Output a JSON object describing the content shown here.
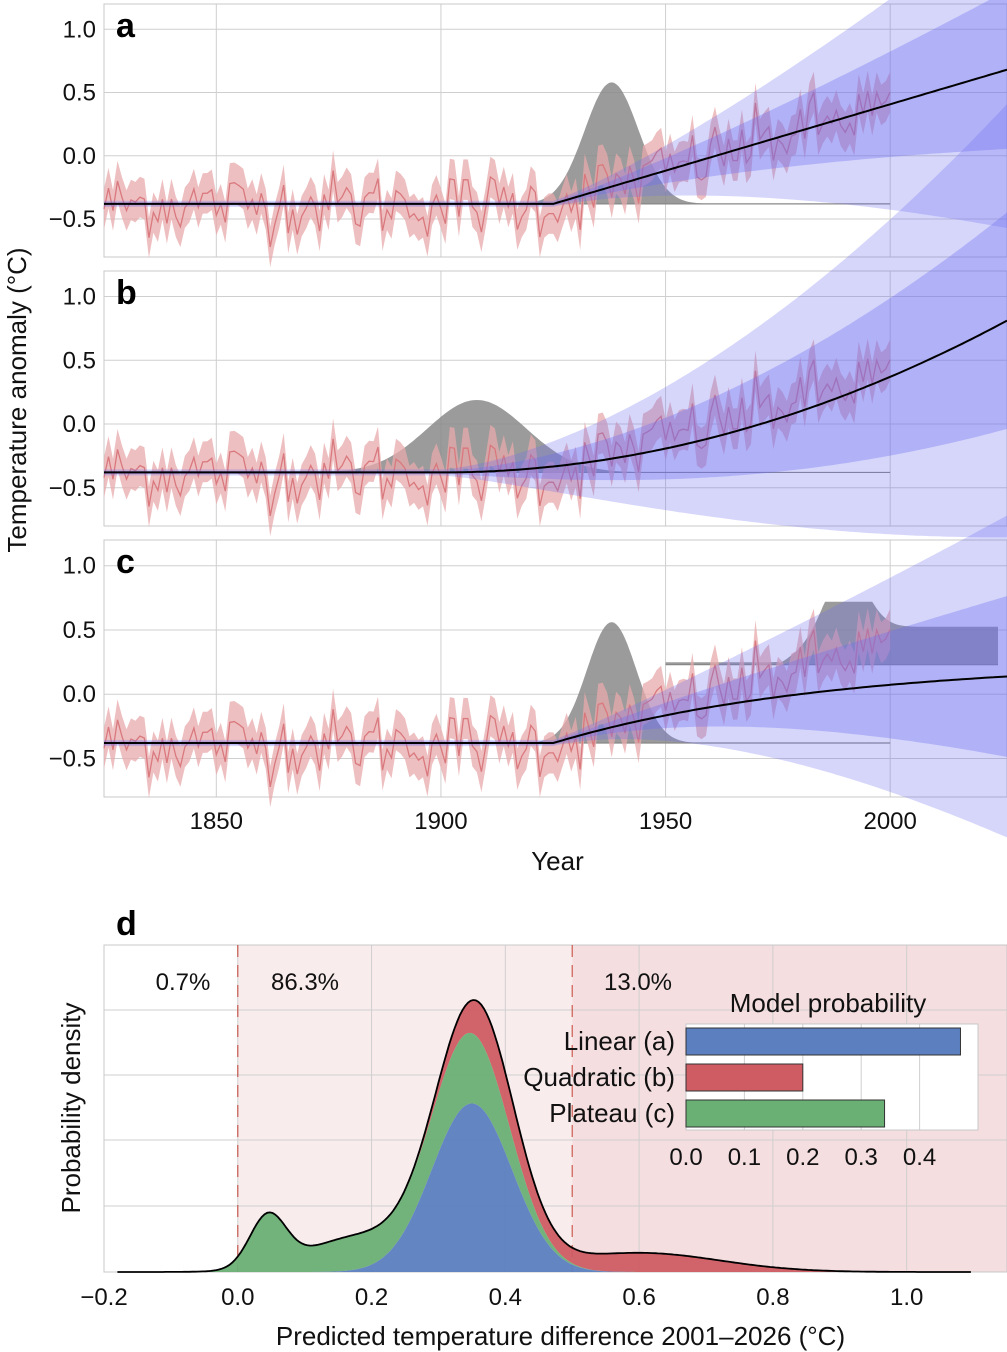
{
  "chart_data": [
    {
      "panel": "a",
      "type": "line",
      "model": "Linear",
      "ylabel": "Temperature anomaly (°C)",
      "xlabel": "Year",
      "xlim": [
        1825,
        2026
      ],
      "ylim": [
        -0.8,
        1.2
      ],
      "xticks": [
        1850,
        1900,
        1950,
        2000
      ],
      "yticks": [
        -0.5,
        0.0,
        0.5,
        1.0
      ],
      "baseline": -0.38,
      "changepoint_mode": 1938,
      "changepoint_sd": 6,
      "changepoint_peak": 0.6,
      "observed_years": [
        1825,
        2000
      ],
      "trend": {
        "type": "linear",
        "start": 1925,
        "slope": 0.0105
      },
      "projection_end": 2026
    },
    {
      "panel": "b",
      "type": "line",
      "model": "Quadratic",
      "xlim": [
        1825,
        2026
      ],
      "ylim": [
        -0.8,
        1.2
      ],
      "xticks": [
        1850,
        1900,
        1950,
        2000
      ],
      "yticks": [
        -0.5,
        0.0,
        0.5,
        1.0
      ],
      "baseline": -0.38,
      "changepoint_mode": 1908,
      "changepoint_sd": 11,
      "changepoint_peak": 0.2,
      "trend": {
        "type": "quadratic",
        "start": 1900,
        "coef": 7.5e-05
      },
      "projection_end": 2026
    },
    {
      "panel": "c",
      "type": "line",
      "model": "Plateau",
      "xlim": [
        1825,
        2026
      ],
      "ylim": [
        -0.8,
        1.2
      ],
      "xticks": [
        1850,
        1900,
        1950,
        2000
      ],
      "yticks": [
        -0.5,
        0.0,
        0.5,
        1.0
      ],
      "xtick_labels": [
        "1850",
        "1900",
        "1950",
        "2000"
      ],
      "baseline": -0.38,
      "changepoint_mode": 1938,
      "changepoint_sd": 5.5,
      "changepoint_peak": 0.58,
      "plateau_level": 0.25,
      "plateau_year_mode": 1990,
      "trend": {
        "type": "plateau",
        "start": 1925,
        "slope": 0.0105,
        "plateau": 0.26
      },
      "projection_end": 2026
    },
    {
      "panel": "d",
      "type": "area",
      "title": "",
      "xlabel": "Predicted temperature difference 2001–2026 (°C)",
      "ylabel": "Probability density",
      "xlim": [
        -0.2,
        1.15
      ],
      "xticks": [
        -0.2,
        0.0,
        0.2,
        0.4,
        0.6,
        0.8,
        1.0
      ],
      "xtick_labels": [
        "−0.2",
        "0.0",
        "0.2",
        "0.4",
        "0.6",
        "0.8",
        "1.0"
      ],
      "thresholds": [
        0.0,
        0.5
      ],
      "region_labels": [
        "0.7%",
        "86.3%",
        "13.0%"
      ],
      "series": [
        {
          "name": "Linear",
          "components": [
            {
              "mean": 0.35,
              "sd": 0.06,
              "weight": 0.44
            }
          ]
        },
        {
          "name": "Quadratic",
          "components": [
            {
              "mean": 0.38,
              "sd": 0.05,
              "weight": 0.08
            },
            {
              "mean": 0.6,
              "sd": 0.12,
              "weight": 0.1
            }
          ]
        },
        {
          "name": "Plateau",
          "components": [
            {
              "mean": 0.045,
              "sd": 0.027,
              "weight": 0.06
            },
            {
              "mean": 0.18,
              "sd": 0.08,
              "weight": 0.12
            },
            {
              "mean": 0.345,
              "sd": 0.055,
              "weight": 0.16
            }
          ]
        }
      ]
    },
    {
      "panel": "d-inset",
      "type": "bar",
      "title": "Model probability",
      "categories": [
        "Linear (a)",
        "Quadratic (b)",
        "Plateau (c)"
      ],
      "values": [
        0.47,
        0.2,
        0.34
      ],
      "xlim": [
        0,
        0.5
      ],
      "xticks": [
        0.0,
        0.1,
        0.2,
        0.3,
        0.4
      ],
      "xtick_labels": [
        "0.0",
        "0.1",
        "0.2",
        "0.3",
        "0.4"
      ]
    }
  ],
  "colors": {
    "observed": "#d9797e",
    "observed_band": "#e8a9ab",
    "posterior": "#6c6cf0",
    "changepoint": "#8a8a8a",
    "linear": "#5b7fbf",
    "quadratic": "#cf5c63",
    "plateau": "#6ab075",
    "region_tint": "#f6e4e5"
  }
}
